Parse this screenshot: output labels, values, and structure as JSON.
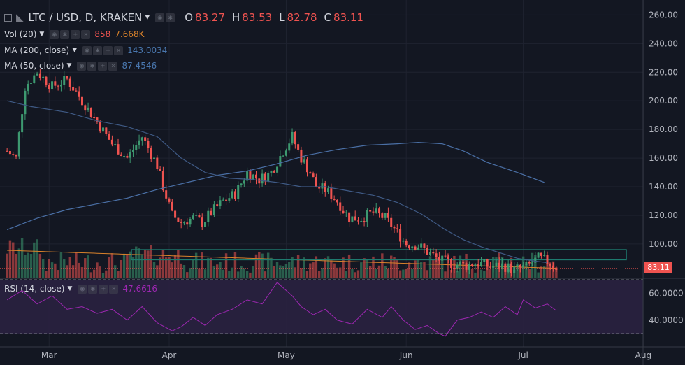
{
  "colors": {
    "background": "#131722",
    "grid": "#1f2330",
    "up": "#3d9970",
    "down": "#ef5350",
    "ma200": "#4a6fa5",
    "ma50": "#3f5a85",
    "vol_ma": "#d9822b",
    "rsi": "#9c27b0",
    "rsi_band": "#2a2140",
    "price_badge": "#ef5350",
    "zone": "#1e7b6f"
  },
  "legend": {
    "symbol": "LTC / USD, D, KRAKEN",
    "o_label": "O",
    "o_value": "83.27",
    "h_label": "H",
    "h_value": "83.53",
    "l_label": "L",
    "l_value": "82.78",
    "c_label": "C",
    "c_value": "83.11",
    "vol_label": "Vol (20)",
    "vol_value": "858",
    "vol_ma_value": "7.668K",
    "ma200_label": "MA (200, close)",
    "ma200_value": "143.0034",
    "ma50_label": "MA (50, close)",
    "ma50_value": "87.4546",
    "rsi_label": "RSI (14, close)",
    "rsi_value": "47.6616"
  },
  "current_price_label": "83.11",
  "chart_data": {
    "type": "candlestick",
    "title": "LTC / USD, D, KRAKEN",
    "x_ticks": [
      "Mar",
      "Apr",
      "May",
      "Jun",
      "Jul",
      "Aug"
    ],
    "y_ticks": [
      "260.00",
      "240.00",
      "220.00",
      "200.00",
      "180.00",
      "160.00",
      "140.00",
      "120.00",
      "100.00"
    ],
    "ylim": [
      76,
      268
    ],
    "rsi_ticks": [
      "60.0000",
      "40.0000"
    ],
    "rsi_band": [
      30,
      70
    ],
    "rsi_last": 47.6616,
    "ma200_last": 143.0034,
    "ma50_last": 87.4546,
    "last_close": 83.11,
    "resistance_zone": [
      89,
      96
    ],
    "close_path": [
      [
        0,
        165
      ],
      [
        3,
        160
      ],
      [
        6,
        210
      ],
      [
        10,
        220
      ],
      [
        15,
        210
      ],
      [
        20,
        215
      ],
      [
        25,
        200
      ],
      [
        30,
        185
      ],
      [
        35,
        170
      ],
      [
        40,
        160
      ],
      [
        45,
        175
      ],
      [
        50,
        155
      ],
      [
        52,
        140
      ],
      [
        55,
        120
      ],
      [
        58,
        115
      ],
      [
        62,
        118
      ],
      [
        65,
        115
      ],
      [
        68,
        122
      ],
      [
        72,
        130
      ],
      [
        76,
        135
      ],
      [
        80,
        150
      ],
      [
        84,
        145
      ],
      [
        88,
        150
      ],
      [
        92,
        165
      ],
      [
        95,
        175
      ],
      [
        98,
        160
      ],
      [
        101,
        150
      ],
      [
        103,
        140
      ],
      [
        106,
        138
      ],
      [
        110,
        130
      ],
      [
        114,
        118
      ],
      [
        118,
        118
      ],
      [
        122,
        122
      ],
      [
        126,
        118
      ],
      [
        130,
        108
      ],
      [
        133,
        100
      ],
      [
        137,
        99
      ],
      [
        141,
        93
      ],
      [
        145,
        88
      ],
      [
        149,
        86
      ],
      [
        153,
        85
      ],
      [
        157,
        87
      ],
      [
        161,
        84
      ],
      [
        165,
        85
      ],
      [
        169,
        82
      ],
      [
        173,
        84
      ],
      [
        177,
        90
      ],
      [
        180,
        88
      ],
      [
        183,
        84
      ]
    ],
    "ma200_path": [
      [
        0,
        110
      ],
      [
        10,
        118
      ],
      [
        20,
        124
      ],
      [
        30,
        128
      ],
      [
        40,
        132
      ],
      [
        50,
        138
      ],
      [
        60,
        143
      ],
      [
        70,
        148
      ],
      [
        80,
        151
      ],
      [
        90,
        156
      ],
      [
        100,
        162
      ],
      [
        110,
        166
      ],
      [
        120,
        169
      ],
      [
        130,
        170
      ],
      [
        137,
        171
      ],
      [
        145,
        170
      ],
      [
        152,
        165
      ],
      [
        160,
        157
      ],
      [
        170,
        150
      ],
      [
        179,
        143
      ]
    ],
    "ma50_path": [
      [
        0,
        200
      ],
      [
        8,
        196
      ],
      [
        20,
        192
      ],
      [
        30,
        186
      ],
      [
        40,
        182
      ],
      [
        50,
        175
      ],
      [
        58,
        160
      ],
      [
        66,
        150
      ],
      [
        74,
        146
      ],
      [
        82,
        145
      ],
      [
        90,
        143
      ],
      [
        98,
        140
      ],
      [
        106,
        140
      ],
      [
        114,
        137
      ],
      [
        122,
        134
      ],
      [
        130,
        129
      ],
      [
        138,
        121
      ],
      [
        146,
        110
      ],
      [
        152,
        103
      ],
      [
        158,
        98
      ],
      [
        164,
        94
      ],
      [
        170,
        90
      ],
      [
        176,
        88
      ],
      [
        180,
        87
      ]
    ],
    "rsi_path": [
      [
        0,
        55
      ],
      [
        5,
        62
      ],
      [
        10,
        52
      ],
      [
        15,
        58
      ],
      [
        20,
        48
      ],
      [
        25,
        50
      ],
      [
        30,
        45
      ],
      [
        35,
        48
      ],
      [
        40,
        40
      ],
      [
        45,
        50
      ],
      [
        50,
        38
      ],
      [
        55,
        32
      ],
      [
        58,
        35
      ],
      [
        62,
        42
      ],
      [
        66,
        36
      ],
      [
        70,
        44
      ],
      [
        75,
        48
      ],
      [
        80,
        55
      ],
      [
        85,
        52
      ],
      [
        90,
        68
      ],
      [
        95,
        58
      ],
      [
        98,
        50
      ],
      [
        102,
        44
      ],
      [
        106,
        48
      ],
      [
        110,
        40
      ],
      [
        115,
        37
      ],
      [
        120,
        48
      ],
      [
        125,
        42
      ],
      [
        128,
        50
      ],
      [
        132,
        40
      ],
      [
        136,
        33
      ],
      [
        140,
        36
      ],
      [
        144,
        30
      ],
      [
        146,
        28
      ],
      [
        150,
        40
      ],
      [
        154,
        42
      ],
      [
        158,
        46
      ],
      [
        162,
        42
      ],
      [
        166,
        50
      ],
      [
        170,
        44
      ],
      [
        172,
        55
      ],
      [
        176,
        49
      ],
      [
        180,
        52
      ],
      [
        183,
        47
      ]
    ]
  }
}
